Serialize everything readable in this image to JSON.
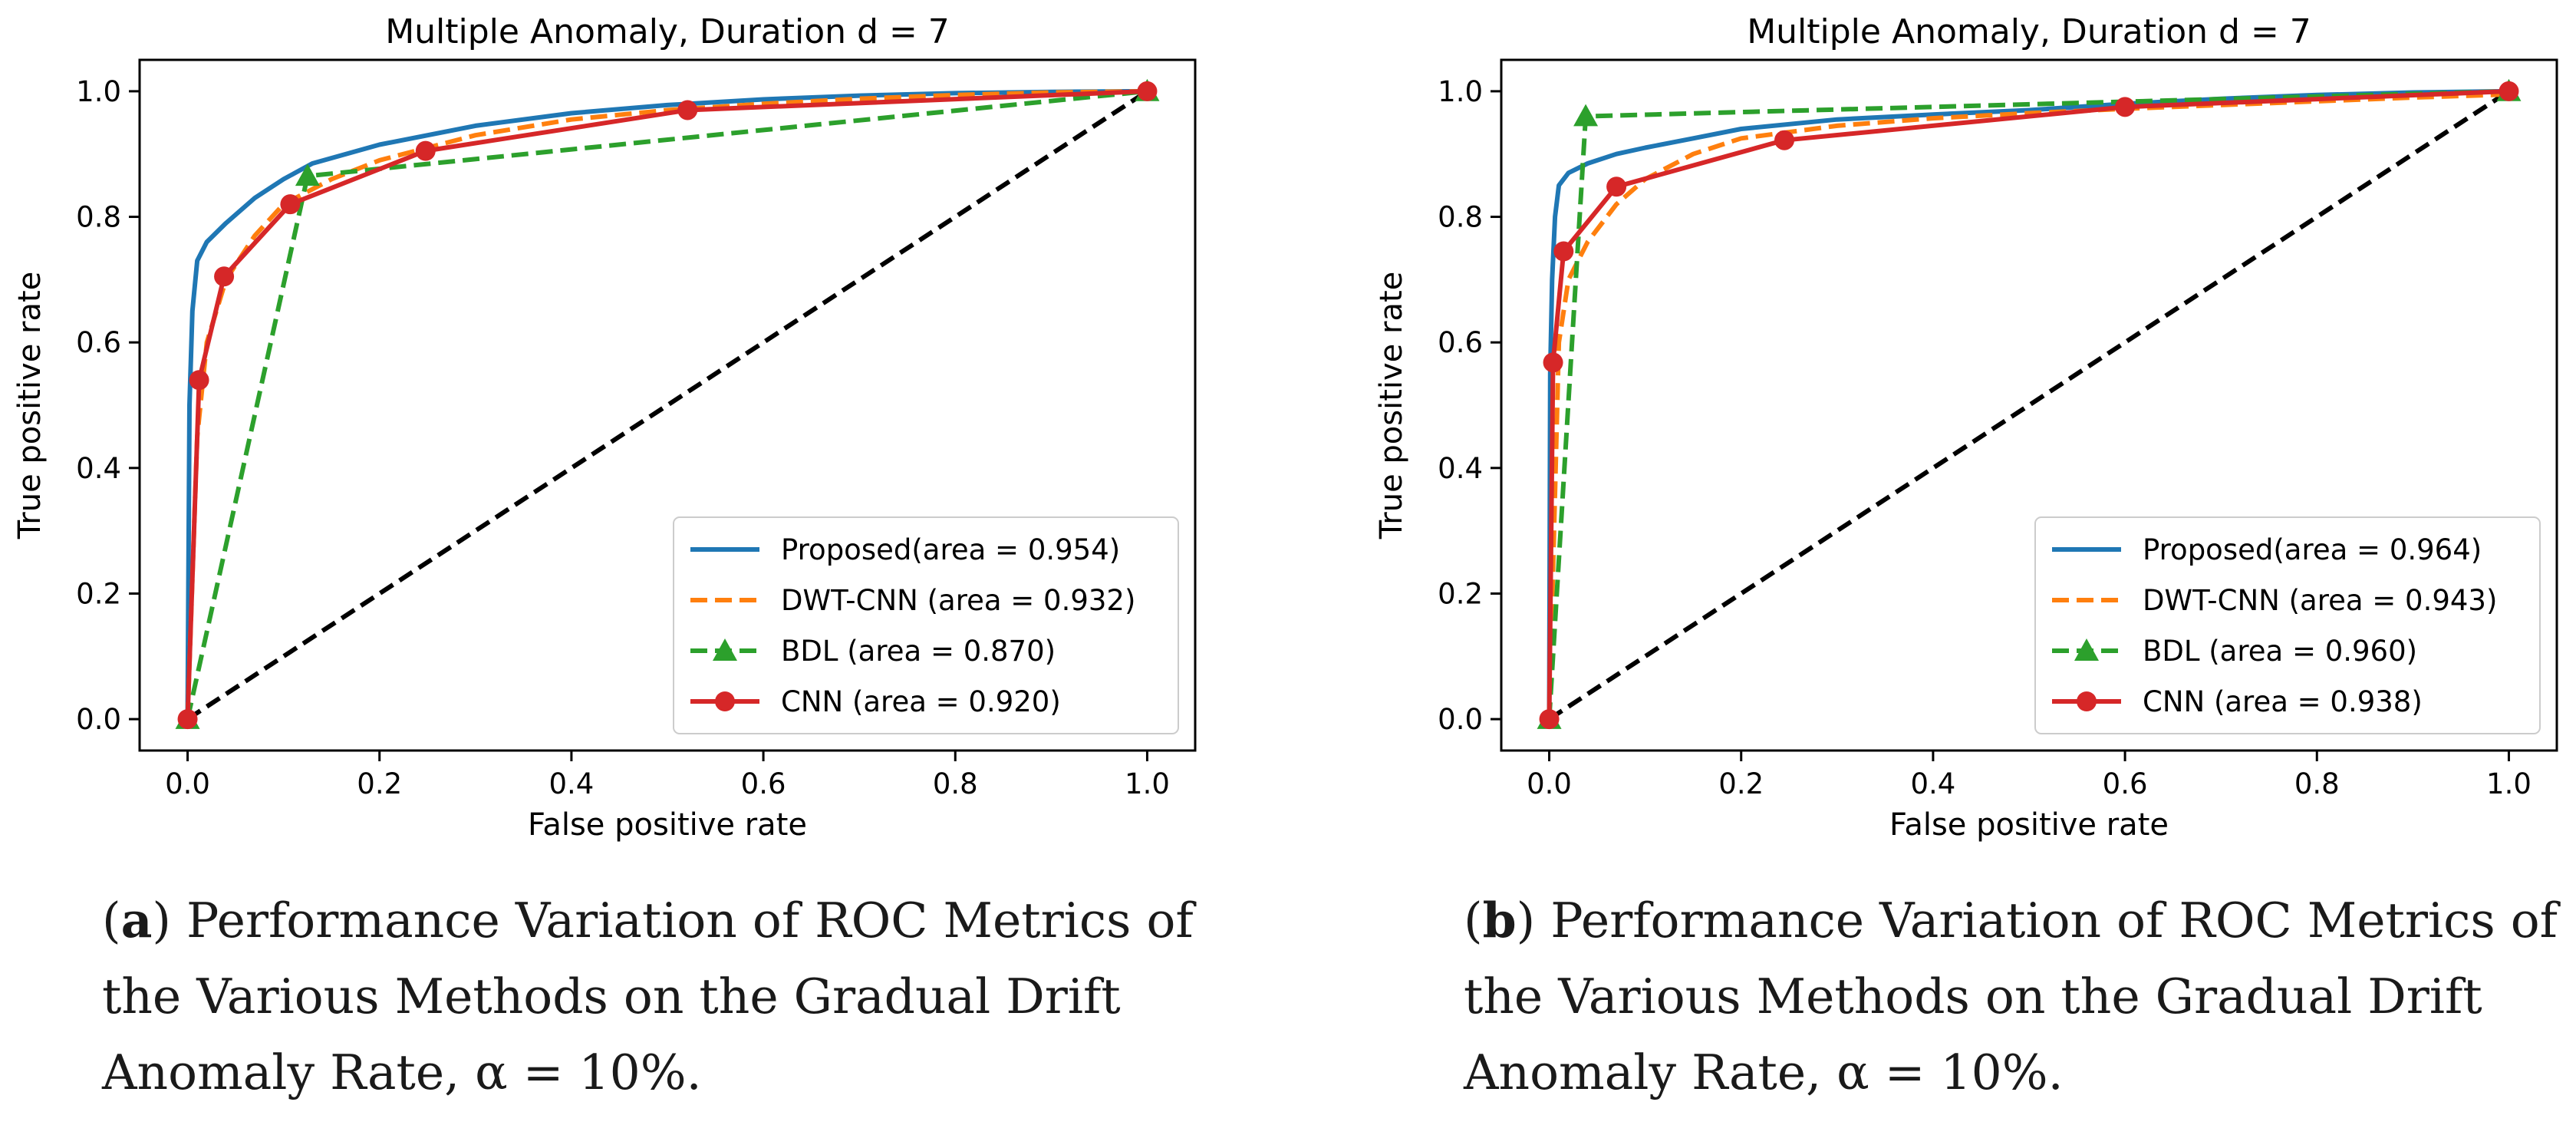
{
  "chart_data": [
    {
      "type": "line",
      "title": "Multiple Anomaly, Duration d = 7",
      "xlabel": "False positive rate",
      "ylabel": "True positive rate",
      "xlim": [
        -0.05,
        1.05
      ],
      "ylim": [
        -0.05,
        1.05
      ],
      "xticks": [
        0.0,
        0.2,
        0.4,
        0.6,
        0.8,
        1.0
      ],
      "yticks": [
        0.0,
        0.2,
        0.4,
        0.6,
        0.8,
        1.0
      ],
      "xtick_labels": [
        "0.0",
        "0.2",
        "0.4",
        "0.6",
        "0.8",
        "1.0"
      ],
      "ytick_labels": [
        "0.0",
        "0.2",
        "0.4",
        "0.6",
        "0.8",
        "1.0"
      ],
      "grid": false,
      "legend": "lower-right",
      "series": [
        {
          "name": "Proposed(area = 0.954)",
          "color": "#1f77b4",
          "style": "solid",
          "marker": "none",
          "x": [
            0,
            0.002,
            0.005,
            0.01,
            0.02,
            0.04,
            0.07,
            0.1,
            0.13,
            0.2,
            0.3,
            0.4,
            0.5,
            0.6,
            0.7,
            0.8,
            0.9,
            1.0
          ],
          "y": [
            0,
            0.5,
            0.65,
            0.73,
            0.76,
            0.79,
            0.83,
            0.86,
            0.885,
            0.915,
            0.945,
            0.965,
            0.978,
            0.987,
            0.993,
            0.997,
            0.999,
            1.0
          ]
        },
        {
          "name": "DWT-CNN (area = 0.932)",
          "color": "#ff7f0e",
          "style": "dashed",
          "marker": "none",
          "x": [
            0,
            0.01,
            0.02,
            0.04,
            0.07,
            0.1,
            0.15,
            0.2,
            0.3,
            0.4,
            0.5,
            0.6,
            0.7,
            0.8,
            0.9,
            1.0
          ],
          "y": [
            0,
            0.45,
            0.6,
            0.7,
            0.77,
            0.82,
            0.86,
            0.89,
            0.93,
            0.955,
            0.97,
            0.98,
            0.988,
            0.994,
            0.998,
            1.0
          ]
        },
        {
          "name": "BDL (area = 0.870)",
          "color": "#2ca02c",
          "style": "dashed",
          "marker": "triangle",
          "x": [
            0,
            0.125,
            1.0
          ],
          "y": [
            0,
            0.865,
            1.0
          ]
        },
        {
          "name": "CNN (area = 0.920)",
          "color": "#d62728",
          "style": "solid",
          "marker": "circle",
          "x": [
            0,
            0.012,
            0.038,
            0.107,
            0.248,
            0.521,
            1.0
          ],
          "y": [
            0,
            0.54,
            0.705,
            0.82,
            0.905,
            0.97,
            1.0
          ]
        },
        {
          "name": "",
          "color": "#000000",
          "style": "dashed",
          "marker": "none",
          "legend": false,
          "x": [
            0,
            1
          ],
          "y": [
            0,
            1
          ]
        }
      ]
    },
    {
      "type": "line",
      "title": "Multiple Anomaly, Duration d = 7",
      "xlabel": "False positive rate",
      "ylabel": "True positive rate",
      "xlim": [
        -0.05,
        1.05
      ],
      "ylim": [
        -0.05,
        1.05
      ],
      "xticks": [
        0.0,
        0.2,
        0.4,
        0.6,
        0.8,
        1.0
      ],
      "yticks": [
        0.0,
        0.2,
        0.4,
        0.6,
        0.8,
        1.0
      ],
      "xtick_labels": [
        "0.0",
        "0.2",
        "0.4",
        "0.6",
        "0.8",
        "1.0"
      ],
      "ytick_labels": [
        "0.0",
        "0.2",
        "0.4",
        "0.6",
        "0.8",
        "1.0"
      ],
      "grid": false,
      "legend": "lower-right",
      "series": [
        {
          "name": "Proposed(area = 0.964)",
          "color": "#1f77b4",
          "style": "solid",
          "marker": "none",
          "x": [
            0,
            0.001,
            0.003,
            0.006,
            0.01,
            0.02,
            0.04,
            0.07,
            0.1,
            0.15,
            0.2,
            0.3,
            0.4,
            0.5,
            0.6,
            0.7,
            0.8,
            0.9,
            1.0
          ],
          "y": [
            0,
            0.55,
            0.7,
            0.8,
            0.85,
            0.87,
            0.885,
            0.9,
            0.91,
            0.925,
            0.94,
            0.955,
            0.963,
            0.97,
            0.98,
            0.988,
            0.994,
            0.998,
            1.0
          ]
        },
        {
          "name": "DWT-CNN (area = 0.943)",
          "color": "#ff7f0e",
          "style": "dashed",
          "marker": "none",
          "x": [
            0,
            0.01,
            0.02,
            0.04,
            0.07,
            0.1,
            0.15,
            0.2,
            0.3,
            0.4,
            0.5,
            0.6,
            0.7,
            0.8,
            0.9,
            1.0
          ],
          "y": [
            0,
            0.6,
            0.7,
            0.76,
            0.82,
            0.86,
            0.9,
            0.925,
            0.945,
            0.957,
            0.965,
            0.972,
            0.978,
            0.984,
            0.99,
            0.995
          ]
        },
        {
          "name": "BDL (area = 0.960)",
          "color": "#2ca02c",
          "style": "dashed",
          "marker": "triangle",
          "x": [
            0,
            0.038,
            1.0
          ],
          "y": [
            0,
            0.96,
            1.0
          ]
        },
        {
          "name": "CNN (area = 0.938)",
          "color": "#d62728",
          "style": "solid",
          "marker": "circle",
          "x": [
            0,
            0.004,
            0.015,
            0.07,
            0.245,
            0.6,
            1.0
          ],
          "y": [
            0,
            0.568,
            0.745,
            0.848,
            0.922,
            0.975,
            1.0
          ]
        },
        {
          "name": "",
          "color": "#000000",
          "style": "dashed",
          "marker": "none",
          "legend": false,
          "x": [
            0,
            1
          ],
          "y": [
            0,
            1
          ]
        }
      ]
    }
  ],
  "captions": [
    {
      "tag": "a",
      "before": "(",
      "after": ") Performance Variation of ROC Metrics of the Various Methods on the Gradual Drift Anomaly Rate, α = 10%."
    },
    {
      "tag": "b",
      "before": "(",
      "after": ") Performance Variation of ROC Metrics of the Various Methods on the Gradual Drift Anomaly Rate, α = 10%."
    }
  ]
}
